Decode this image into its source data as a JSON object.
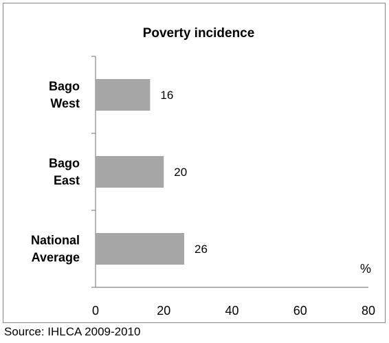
{
  "chart_data": {
    "type": "bar",
    "orientation": "horizontal",
    "title": "Poverty incidence",
    "categories": [
      [
        "Bago",
        "West"
      ],
      [
        "Bago",
        "East"
      ],
      [
        "National",
        "Average"
      ]
    ],
    "values": [
      16,
      20,
      26
    ],
    "data_labels": [
      "16",
      "20",
      "26"
    ],
    "x_ticks": [
      "0",
      "20",
      "40",
      "60",
      "80"
    ],
    "xlim": [
      0,
      80
    ],
    "unit": "%",
    "grid": false,
    "bar_color": "#a6a6a6"
  },
  "footer": {
    "source": "Source: IHLCA 2009-2010"
  }
}
